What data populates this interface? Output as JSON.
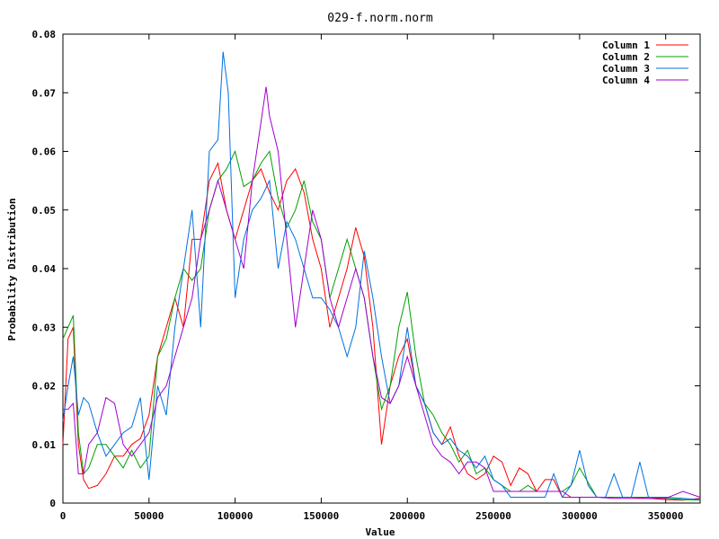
{
  "chart_data": {
    "type": "line",
    "title": "029-f.norm.norm",
    "xlabel": "Value",
    "ylabel": "Probability Distribution",
    "xlim": [
      0,
      370000
    ],
    "ylim": [
      0,
      0.08
    ],
    "x_ticks": [
      0,
      50000,
      100000,
      150000,
      200000,
      250000,
      300000,
      350000
    ],
    "y_ticks": [
      0,
      0.01,
      0.02,
      0.03,
      0.04,
      0.05,
      0.06,
      0.07,
      0.08
    ],
    "x_tick_labels": [
      "0",
      "50000",
      "100000",
      "150000",
      "200000",
      "250000",
      "300000",
      "350000"
    ],
    "y_tick_labels": [
      "0",
      "0.01",
      "0.02",
      "0.03",
      "0.04",
      "0.05",
      "0.06",
      "0.07",
      "0.08"
    ],
    "legend_position": "top-right",
    "grid": false,
    "series": [
      {
        "name": "Column 1",
        "color": "#ff0000",
        "x": [
          0,
          3000,
          6000,
          9000,
          12000,
          15000,
          20000,
          25000,
          30000,
          35000,
          40000,
          45000,
          50000,
          55000,
          60000,
          65000,
          70000,
          75000,
          80000,
          85000,
          90000,
          95000,
          100000,
          105000,
          110000,
          115000,
          120000,
          125000,
          130000,
          135000,
          140000,
          145000,
          150000,
          155000,
          160000,
          165000,
          170000,
          175000,
          180000,
          185000,
          190000,
          195000,
          200000,
          205000,
          210000,
          215000,
          220000,
          225000,
          230000,
          235000,
          240000,
          245000,
          250000,
          255000,
          260000,
          265000,
          270000,
          275000,
          280000,
          285000,
          290000,
          295000,
          300000,
          310000,
          320000,
          330000,
          340000,
          350000,
          360000,
          370000
        ],
        "values": [
          0.01,
          0.028,
          0.03,
          0.01,
          0.004,
          0.0025,
          0.003,
          0.005,
          0.008,
          0.008,
          0.01,
          0.011,
          0.015,
          0.025,
          0.03,
          0.035,
          0.03,
          0.045,
          0.045,
          0.055,
          0.058,
          0.05,
          0.045,
          0.05,
          0.055,
          0.057,
          0.053,
          0.05,
          0.055,
          0.057,
          0.053,
          0.045,
          0.04,
          0.03,
          0.035,
          0.04,
          0.047,
          0.042,
          0.03,
          0.01,
          0.02,
          0.025,
          0.028,
          0.02,
          0.017,
          0.012,
          0.01,
          0.013,
          0.008,
          0.005,
          0.004,
          0.005,
          0.008,
          0.007,
          0.003,
          0.006,
          0.005,
          0.002,
          0.004,
          0.004,
          0.001,
          0.001,
          0.001,
          0.001,
          0.001,
          0.001,
          0.0008,
          0.0006,
          0.0005,
          0.0008
        ]
      },
      {
        "name": "Column 2",
        "color": "#00a000",
        "x": [
          0,
          3000,
          6000,
          9000,
          12000,
          15000,
          20000,
          25000,
          30000,
          35000,
          40000,
          45000,
          50000,
          55000,
          60000,
          65000,
          70000,
          75000,
          80000,
          85000,
          90000,
          95000,
          100000,
          105000,
          110000,
          115000,
          120000,
          125000,
          130000,
          135000,
          140000,
          145000,
          150000,
          155000,
          160000,
          165000,
          170000,
          175000,
          180000,
          185000,
          190000,
          195000,
          200000,
          205000,
          210000,
          215000,
          220000,
          225000,
          230000,
          235000,
          240000,
          245000,
          250000,
          255000,
          260000,
          265000,
          270000,
          275000,
          280000,
          285000,
          290000,
          295000,
          300000,
          310000,
          320000,
          330000,
          340000,
          350000,
          360000,
          370000
        ],
        "values": [
          0.028,
          0.03,
          0.032,
          0.012,
          0.005,
          0.006,
          0.01,
          0.01,
          0.008,
          0.006,
          0.009,
          0.006,
          0.008,
          0.025,
          0.028,
          0.035,
          0.04,
          0.038,
          0.04,
          0.05,
          0.055,
          0.057,
          0.06,
          0.054,
          0.055,
          0.058,
          0.06,
          0.052,
          0.047,
          0.05,
          0.055,
          0.048,
          0.045,
          0.035,
          0.04,
          0.045,
          0.04,
          0.035,
          0.025,
          0.016,
          0.02,
          0.03,
          0.036,
          0.025,
          0.017,
          0.015,
          0.012,
          0.01,
          0.007,
          0.009,
          0.005,
          0.006,
          0.004,
          0.003,
          0.002,
          0.002,
          0.003,
          0.002,
          0.002,
          0.002,
          0.002,
          0.003,
          0.006,
          0.001,
          0.001,
          0.001,
          0.001,
          0.0008,
          0.0006,
          0.0005
        ]
      },
      {
        "name": "Column 3",
        "color": "#0070e0",
        "x": [
          0,
          3000,
          6000,
          9000,
          12000,
          15000,
          20000,
          25000,
          30000,
          35000,
          40000,
          45000,
          50000,
          55000,
          60000,
          65000,
          70000,
          75000,
          80000,
          85000,
          90000,
          93000,
          96000,
          100000,
          105000,
          110000,
          115000,
          120000,
          125000,
          130000,
          135000,
          140000,
          145000,
          150000,
          155000,
          160000,
          165000,
          170000,
          175000,
          180000,
          185000,
          190000,
          195000,
          200000,
          205000,
          210000,
          215000,
          220000,
          225000,
          230000,
          235000,
          240000,
          245000,
          250000,
          255000,
          260000,
          265000,
          270000,
          275000,
          280000,
          285000,
          290000,
          295000,
          300000,
          305000,
          310000,
          315000,
          320000,
          325000,
          330000,
          335000,
          340000,
          350000,
          360000,
          370000
        ],
        "values": [
          0.014,
          0.02,
          0.025,
          0.015,
          0.018,
          0.017,
          0.012,
          0.008,
          0.01,
          0.012,
          0.013,
          0.018,
          0.004,
          0.02,
          0.015,
          0.03,
          0.04,
          0.05,
          0.03,
          0.06,
          0.062,
          0.077,
          0.07,
          0.035,
          0.045,
          0.05,
          0.052,
          0.055,
          0.04,
          0.048,
          0.045,
          0.04,
          0.035,
          0.035,
          0.033,
          0.03,
          0.025,
          0.03,
          0.043,
          0.035,
          0.025,
          0.017,
          0.02,
          0.03,
          0.02,
          0.017,
          0.012,
          0.01,
          0.011,
          0.009,
          0.008,
          0.006,
          0.008,
          0.004,
          0.003,
          0.001,
          0.001,
          0.001,
          0.001,
          0.001,
          0.005,
          0.001,
          0.003,
          0.009,
          0.003,
          0.001,
          0.001,
          0.005,
          0.001,
          0.001,
          0.007,
          0.001,
          0.001,
          0.0008,
          0.0006
        ]
      },
      {
        "name": "Column 4",
        "color": "#a000d0",
        "x": [
          0,
          3000,
          6000,
          9000,
          12000,
          15000,
          20000,
          25000,
          30000,
          35000,
          40000,
          45000,
          50000,
          55000,
          60000,
          65000,
          70000,
          75000,
          80000,
          85000,
          90000,
          95000,
          100000,
          105000,
          110000,
          115000,
          118000,
          120000,
          125000,
          130000,
          135000,
          140000,
          145000,
          150000,
          155000,
          160000,
          165000,
          170000,
          175000,
          180000,
          185000,
          190000,
          195000,
          200000,
          205000,
          210000,
          215000,
          220000,
          225000,
          230000,
          235000,
          240000,
          245000,
          250000,
          255000,
          260000,
          265000,
          270000,
          275000,
          280000,
          285000,
          290000,
          295000,
          300000,
          310000,
          320000,
          330000,
          340000,
          350000,
          360000,
          370000
        ],
        "values": [
          0.016,
          0.016,
          0.017,
          0.005,
          0.005,
          0.01,
          0.012,
          0.018,
          0.017,
          0.01,
          0.008,
          0.01,
          0.012,
          0.018,
          0.02,
          0.025,
          0.03,
          0.035,
          0.045,
          0.05,
          0.055,
          0.05,
          0.045,
          0.04,
          0.055,
          0.065,
          0.071,
          0.066,
          0.06,
          0.045,
          0.03,
          0.04,
          0.05,
          0.045,
          0.035,
          0.03,
          0.035,
          0.04,
          0.035,
          0.025,
          0.018,
          0.017,
          0.02,
          0.025,
          0.02,
          0.015,
          0.01,
          0.008,
          0.007,
          0.005,
          0.007,
          0.007,
          0.006,
          0.002,
          0.002,
          0.002,
          0.002,
          0.002,
          0.002,
          0.002,
          0.002,
          0.002,
          0.001,
          0.001,
          0.001,
          0.0008,
          0.0008,
          0.0008,
          0.0008,
          0.002,
          0.001
        ]
      }
    ]
  }
}
